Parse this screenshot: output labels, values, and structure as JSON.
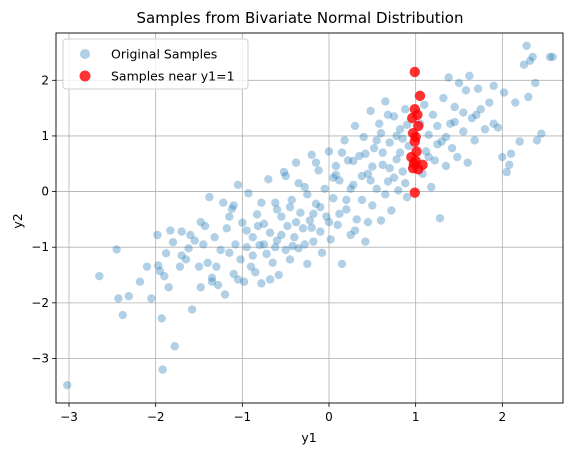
{
  "chart_data": {
    "type": "scatter",
    "title": "Samples from Bivariate Normal Distribution",
    "xlabel": "y1",
    "ylabel": "y2",
    "xlim": [
      -3.15,
      2.7
    ],
    "ylim": [
      -3.8,
      2.85
    ],
    "x_ticks": [
      -3,
      -2,
      -1,
      0,
      1,
      2
    ],
    "y_ticks": [
      -3,
      -2,
      -1,
      0,
      1,
      2
    ],
    "x_tick_labels": [
      "−3",
      "−2",
      "−1",
      "0",
      "1",
      "2"
    ],
    "y_tick_labels": [
      "−3",
      "−2",
      "−1",
      "0",
      "1",
      "2"
    ],
    "grid": true,
    "legend_position": "upper-left",
    "series": [
      {
        "name": "Original Samples",
        "color": "#1f77b4",
        "alpha": 0.35,
        "marker": "circle",
        "points": [
          [
            -3.02,
            -3.48
          ],
          [
            -2.65,
            -1.52
          ],
          [
            -2.45,
            -1.04
          ],
          [
            -2.43,
            -1.92
          ],
          [
            -2.38,
            -2.22
          ],
          [
            -2.31,
            -1.88
          ],
          [
            -2.18,
            -1.62
          ],
          [
            -2.05,
            -1.92
          ],
          [
            -1.98,
            -0.78
          ],
          [
            -1.97,
            -1.33
          ],
          [
            -1.95,
            -1.43
          ],
          [
            -1.93,
            -2.28
          ],
          [
            -1.92,
            -3.2
          ],
          [
            -1.9,
            -1.52
          ],
          [
            -1.88,
            -1.11
          ],
          [
            -1.85,
            -1.72
          ],
          [
            -1.83,
            -0.7
          ],
          [
            -1.8,
            -0.91
          ],
          [
            -1.78,
            -2.78
          ],
          [
            -1.72,
            -1.35
          ],
          [
            -1.7,
            -0.72
          ],
          [
            -1.65,
            -1.22
          ],
          [
            -1.62,
            -1.02
          ],
          [
            -1.58,
            -2.12
          ],
          [
            -1.55,
            -0.88
          ],
          [
            -1.5,
            -1.35
          ],
          [
            -1.48,
            -1.72
          ],
          [
            -1.45,
            -0.95
          ],
          [
            -1.43,
            -0.62
          ],
          [
            -1.4,
            -1.28
          ],
          [
            -1.38,
            -0.1
          ],
          [
            -1.35,
            -1.55
          ],
          [
            -1.32,
            -0.82
          ],
          [
            -1.28,
            -1.68
          ],
          [
            -1.25,
            -1.05
          ],
          [
            -1.22,
            -0.2
          ],
          [
            -1.2,
            -1.85
          ],
          [
            -1.18,
            -0.66
          ],
          [
            -1.15,
            -1.1
          ],
          [
            -1.12,
            -0.31
          ],
          [
            -1.1,
            -1.48
          ],
          [
            -1.08,
            -0.95
          ],
          [
            -1.05,
            0.12
          ],
          [
            -1.02,
            -1.22
          ],
          [
            -1.0,
            -0.56
          ],
          [
            -0.98,
            -1.62
          ],
          [
            -0.95,
            -0.7
          ],
          [
            -0.93,
            -0.03
          ],
          [
            -0.9,
            -1.35
          ],
          [
            -0.88,
            -0.82
          ],
          [
            -0.85,
            -1.45
          ],
          [
            -0.83,
            -0.41
          ],
          [
            -0.8,
            -0.96
          ],
          [
            -0.78,
            -1.65
          ],
          [
            -0.75,
            -0.58
          ],
          [
            -0.72,
            -1.12
          ],
          [
            -0.7,
            0.22
          ],
          [
            -0.68,
            -0.74
          ],
          [
            -0.65,
            -1.28
          ],
          [
            -0.62,
            -0.2
          ],
          [
            -0.6,
            -0.88
          ],
          [
            -0.58,
            -1.5
          ],
          [
            -0.55,
            -0.45
          ],
          [
            -0.52,
            0.35
          ],
          [
            -0.5,
            -1.05
          ],
          [
            -0.48,
            -0.62
          ],
          [
            -0.45,
            -1.22
          ],
          [
            -0.43,
            -0.15
          ],
          [
            -0.4,
            -0.82
          ],
          [
            -0.38,
            0.52
          ],
          [
            -0.35,
            -1.02
          ],
          [
            -0.33,
            -0.38
          ],
          [
            -0.3,
            -0.66
          ],
          [
            -0.28,
            0.08
          ],
          [
            -0.25,
            -1.3
          ],
          [
            -0.22,
            -0.52
          ],
          [
            -0.2,
            0.66
          ],
          [
            -0.18,
            -0.9
          ],
          [
            -0.15,
            -0.22
          ],
          [
            -0.12,
            0.38
          ],
          [
            -0.1,
            -0.72
          ],
          [
            -0.08,
            -1.1
          ],
          [
            -0.05,
            0.05
          ],
          [
            -0.03,
            -0.45
          ],
          [
            0.0,
            0.72
          ],
          [
            0.02,
            -0.86
          ],
          [
            0.05,
            -0.12
          ],
          [
            0.08,
            0.46
          ],
          [
            0.1,
            -0.6
          ],
          [
            0.12,
            0.2
          ],
          [
            0.15,
            -1.3
          ],
          [
            0.18,
            0.92
          ],
          [
            0.2,
            -0.32
          ],
          [
            0.22,
            0.56
          ],
          [
            0.25,
            -0.78
          ],
          [
            0.28,
            0.12
          ],
          [
            0.3,
            1.18
          ],
          [
            0.32,
            -0.5
          ],
          [
            0.35,
            0.64
          ],
          [
            0.38,
            -0.15
          ],
          [
            0.4,
            0.98
          ],
          [
            0.42,
            -0.9
          ],
          [
            0.45,
            0.32
          ],
          [
            0.48,
            1.45
          ],
          [
            0.5,
            -0.25
          ],
          [
            0.52,
            0.78
          ],
          [
            0.55,
            0.05
          ],
          [
            0.58,
            1.22
          ],
          [
            0.6,
            -0.52
          ],
          [
            0.62,
            0.48
          ],
          [
            0.65,
            1.62
          ],
          [
            0.68,
            0.18
          ],
          [
            0.7,
            0.88
          ],
          [
            0.72,
            -0.34
          ],
          [
            0.75,
            1.35
          ],
          [
            0.78,
            0.58
          ],
          [
            0.8,
            0.02
          ],
          [
            0.82,
            1.12
          ],
          [
            0.85,
            0.36
          ],
          [
            0.88,
            1.48
          ],
          [
            0.9,
            -0.1
          ],
          [
            0.92,
            0.82
          ],
          [
            1.05,
            1.22
          ],
          [
            1.08,
            0.32
          ],
          [
            1.1,
            1.56
          ],
          [
            1.12,
            0.72
          ],
          [
            1.15,
            1.02
          ],
          [
            1.18,
            0.08
          ],
          [
            1.2,
            1.38
          ],
          [
            1.22,
            0.56
          ],
          [
            1.25,
            1.18
          ],
          [
            1.28,
            -0.48
          ],
          [
            1.3,
            0.9
          ],
          [
            1.32,
            1.68
          ],
          [
            1.35,
            0.46
          ],
          [
            1.38,
            2.05
          ],
          [
            1.4,
            1.22
          ],
          [
            1.42,
            0.78
          ],
          [
            1.45,
            1.52
          ],
          [
            1.48,
            0.62
          ],
          [
            1.5,
            1.95
          ],
          [
            1.55,
            1.08
          ],
          [
            1.58,
            1.82
          ],
          [
            1.6,
            0.52
          ],
          [
            1.62,
            2.08
          ],
          [
            1.65,
            1.32
          ],
          [
            1.68,
            0.92
          ],
          [
            1.72,
            1.85
          ],
          [
            1.75,
            1.48
          ],
          [
            1.8,
            1.12
          ],
          [
            1.85,
            1.6
          ],
          [
            1.9,
            1.22
          ],
          [
            1.95,
            1.15
          ],
          [
            2.0,
            0.62
          ],
          [
            2.02,
            1.78
          ],
          [
            2.05,
            0.35
          ],
          [
            2.08,
            0.48
          ],
          [
            2.1,
            0.68
          ],
          [
            2.15,
            1.6
          ],
          [
            2.2,
            0.9
          ],
          [
            2.25,
            2.28
          ],
          [
            2.28,
            2.62
          ],
          [
            2.32,
            2.35
          ],
          [
            2.35,
            2.42
          ],
          [
            2.38,
            1.95
          ],
          [
            2.4,
            0.92
          ],
          [
            2.45,
            1.04
          ],
          [
            2.55,
            2.42
          ],
          [
            2.58,
            2.42
          ],
          [
            -0.68,
            -1.58
          ],
          [
            -0.42,
            -0.98
          ],
          [
            -0.25,
            -0.05
          ],
          [
            0.12,
            -0.4
          ],
          [
            0.38,
            0.28
          ],
          [
            0.55,
            0.92
          ],
          [
            0.7,
            0.42
          ],
          [
            0.82,
            0.7
          ],
          [
            -0.95,
            -1.0
          ],
          [
            -0.6,
            -0.32
          ],
          [
            -0.35,
            0.15
          ],
          [
            -0.1,
            -0.28
          ],
          [
            0.15,
            0.7
          ],
          [
            0.45,
            -0.55
          ],
          [
            0.6,
            1.05
          ],
          [
            -1.15,
            -0.45
          ],
          [
            -0.78,
            -0.2
          ],
          [
            -0.5,
            0.28
          ],
          [
            -0.2,
            -0.65
          ],
          [
            0.08,
            0.3
          ],
          [
            0.3,
            -0.7
          ],
          [
            0.65,
            -0.05
          ],
          [
            0.85,
            0.95
          ],
          [
            -1.3,
            -1.35
          ],
          [
            -0.88,
            -1.15
          ],
          [
            -0.55,
            -0.78
          ],
          [
            -0.28,
            -0.95
          ],
          [
            0.0,
            -0.55
          ],
          [
            0.25,
            0.05
          ],
          [
            0.5,
            0.45
          ],
          [
            0.75,
            0.25
          ],
          [
            -1.48,
            -0.55
          ],
          [
            -1.1,
            -0.25
          ],
          [
            -0.75,
            -0.95
          ],
          [
            -0.45,
            -0.28
          ],
          [
            -0.15,
            0.52
          ],
          [
            0.2,
            -0.15
          ],
          [
            0.42,
            0.68
          ],
          [
            0.68,
            1.38
          ],
          [
            0.88,
            0.15
          ],
          [
            1.25,
            0.85
          ],
          [
            1.45,
            1.25
          ],
          [
            1.7,
            1.38
          ],
          [
            -2.1,
            -1.35
          ],
          [
            -1.7,
            -1.15
          ],
          [
            -1.6,
            -0.78
          ],
          [
            -1.35,
            -1.62
          ],
          [
            -1.05,
            -1.58
          ],
          [
            -0.82,
            -0.62
          ],
          [
            -0.62,
            -1.0
          ],
          [
            -0.38,
            -0.55
          ],
          [
            -0.18,
            -0.4
          ],
          [
            0.05,
            0.25
          ],
          [
            0.28,
            0.55
          ],
          [
            0.48,
            0.2
          ],
          [
            0.62,
            0.7
          ],
          [
            0.78,
            1.0
          ],
          [
            0.9,
            1.2
          ],
          [
            1.15,
            0.62
          ],
          [
            1.35,
            0.98
          ],
          [
            1.55,
            1.42
          ],
          [
            1.9,
            1.9
          ],
          [
            2.3,
            1.7
          ]
        ]
      },
      {
        "name": "Samples near y1=1",
        "color": "#ff0000",
        "alpha": 0.8,
        "marker": "circle",
        "points": [
          [
            0.99,
            2.15
          ],
          [
            1.05,
            1.72
          ],
          [
            0.99,
            1.48
          ],
          [
            1.02,
            1.38
          ],
          [
            0.96,
            1.32
          ],
          [
            1.03,
            1.18
          ],
          [
            0.97,
            1.05
          ],
          [
            1.0,
            0.98
          ],
          [
            0.99,
            0.9
          ],
          [
            1.01,
            0.72
          ],
          [
            0.95,
            0.62
          ],
          [
            1.0,
            0.55
          ],
          [
            0.98,
            0.5
          ],
          [
            1.08,
            0.48
          ],
          [
            0.97,
            0.42
          ],
          [
            1.03,
            0.4
          ],
          [
            0.99,
            -0.02
          ]
        ]
      }
    ]
  }
}
